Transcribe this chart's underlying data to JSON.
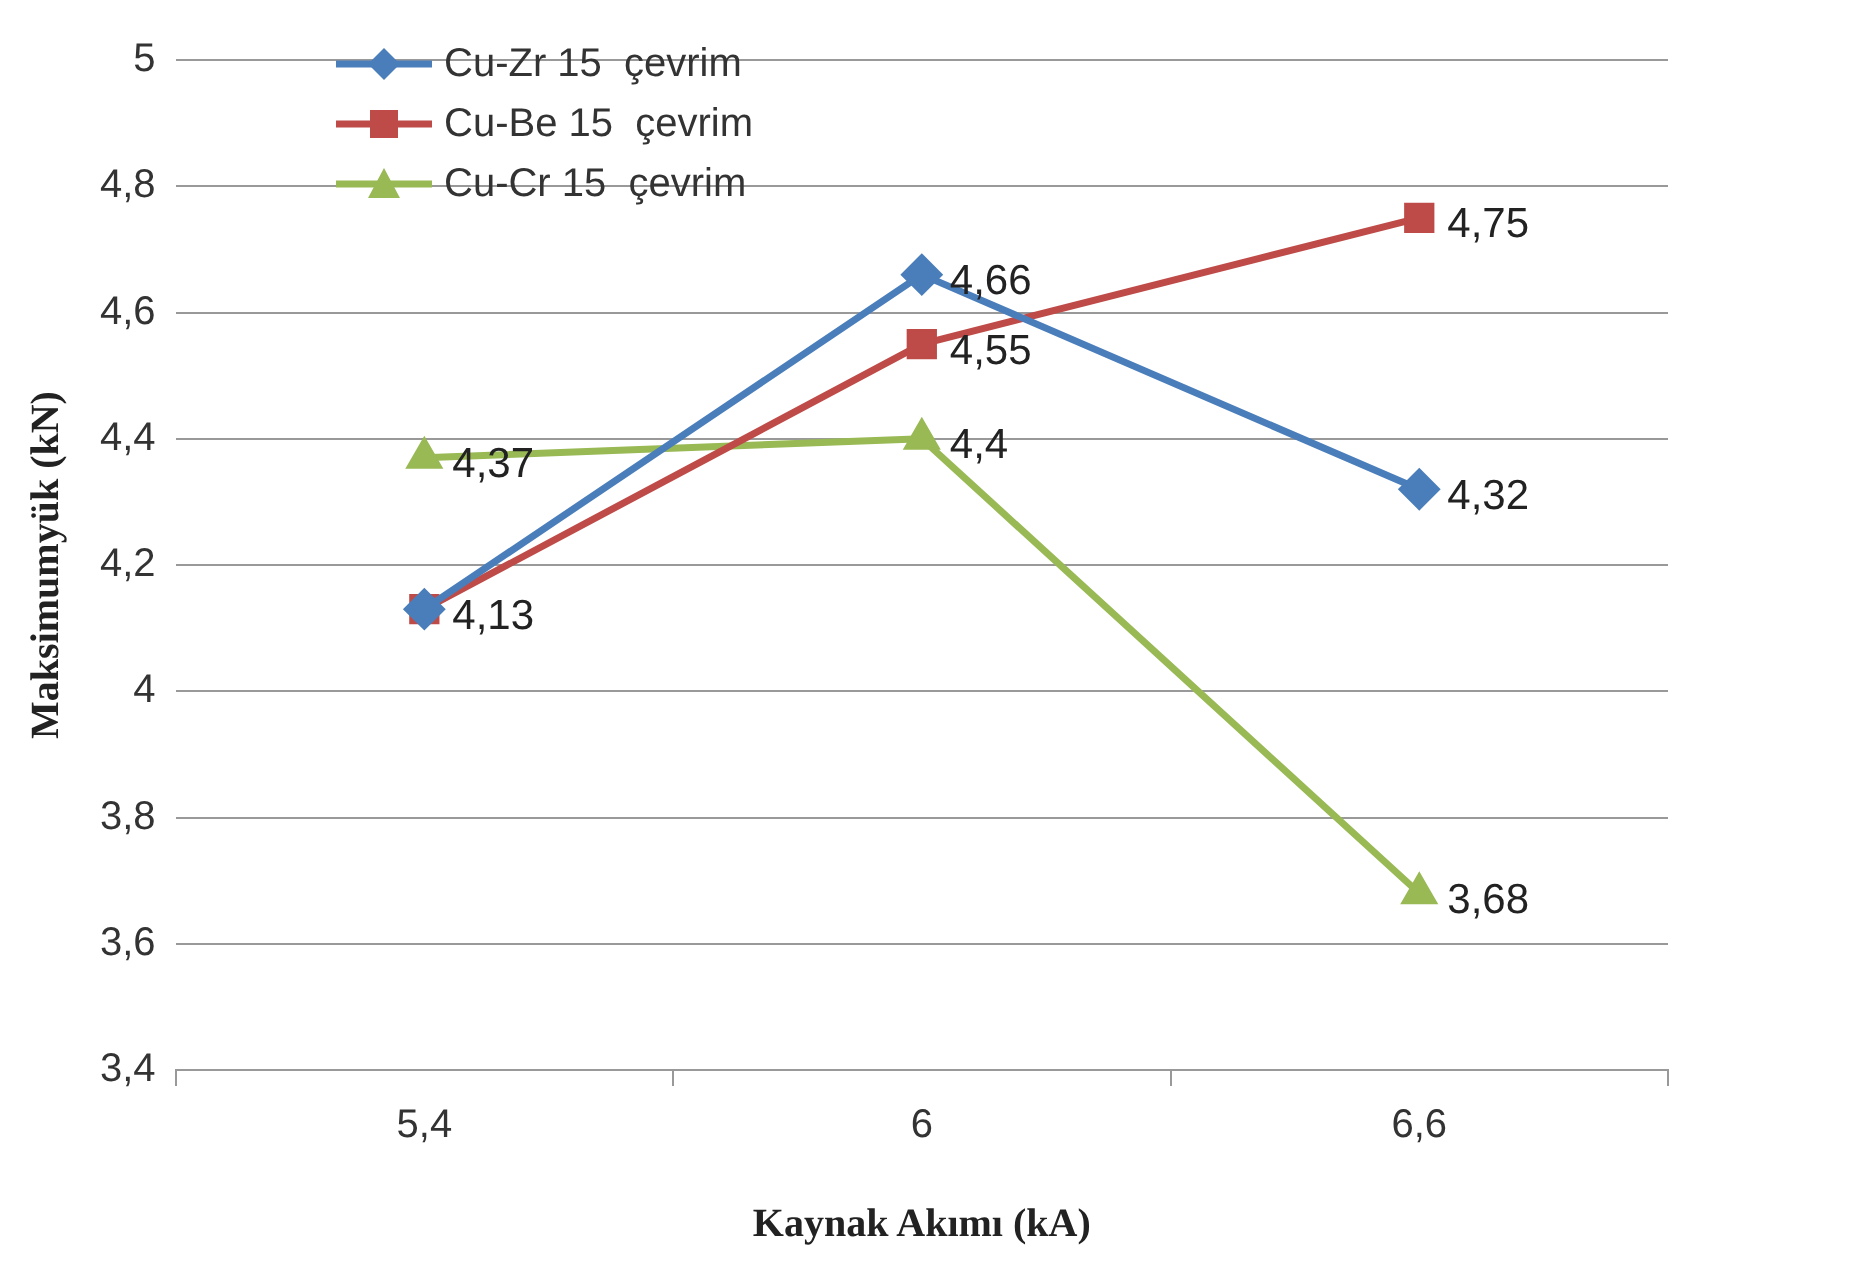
{
  "chart_data": {
    "type": "line",
    "xlabel": "Kaynak Akımı (kA)",
    "ylabel": "Maksimumyük (kN)",
    "categories": [
      "5,4",
      "6",
      "6,6"
    ],
    "series": [
      {
        "name": "Cu-Zr 15  çevrim",
        "color": "#4a7ebb",
        "marker": "diamond",
        "values": [
          4.13,
          4.66,
          4.32
        ],
        "value_labels": [
          null,
          "4,66",
          "4,32"
        ]
      },
      {
        "name": "Cu-Be 15  çevrim",
        "color": "#be4b48",
        "marker": "square",
        "values": [
          4.13,
          4.55,
          4.75
        ],
        "value_labels": [
          "4,13",
          "4,55",
          "4,75"
        ]
      },
      {
        "name": "Cu-Cr 15  çevrim",
        "color": "#98b954",
        "marker": "triangle",
        "values": [
          4.37,
          4.4,
          3.68
        ],
        "value_labels": [
          "4,37",
          "4,4",
          "3,68"
        ]
      }
    ],
    "ylim": [
      3.4,
      5
    ],
    "yticks": [
      {
        "value": 3.4,
        "label": "3,4"
      },
      {
        "value": 3.6,
        "label": "3,6"
      },
      {
        "value": 3.8,
        "label": "3,8"
      },
      {
        "value": 4,
        "label": "4"
      },
      {
        "value": 4.2,
        "label": "4,2"
      },
      {
        "value": 4.4,
        "label": "4,4"
      },
      {
        "value": 4.6,
        "label": "4,6"
      },
      {
        "value": 4.8,
        "label": "4,8"
      },
      {
        "value": 5,
        "label": "5"
      }
    ],
    "grid": "y",
    "legend": "top left"
  }
}
